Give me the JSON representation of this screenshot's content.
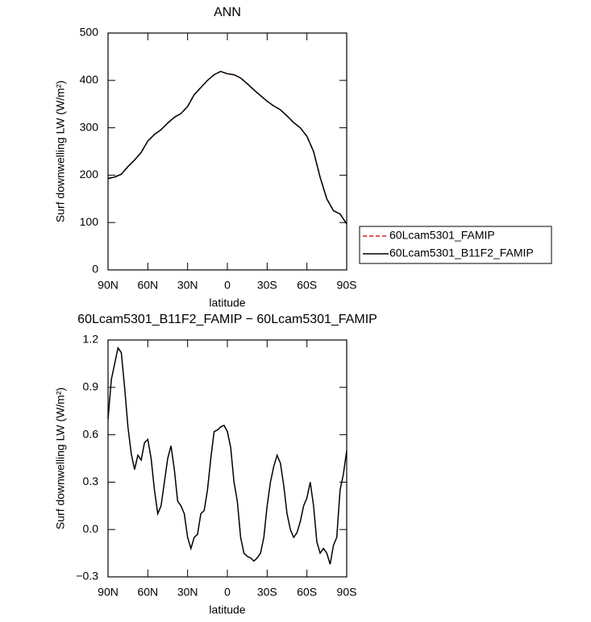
{
  "chart_data": [
    {
      "type": "line",
      "title": "ANN",
      "xlabel": "latitude",
      "ylabel": "Surf downwelling LW (W/m²)",
      "x": [
        90,
        85,
        80,
        75,
        70,
        65,
        60,
        55,
        50,
        45,
        40,
        35,
        30,
        25,
        20,
        15,
        10,
        5,
        0,
        -5,
        -10,
        -15,
        -20,
        -25,
        -30,
        -35,
        -40,
        -45,
        -50,
        -55,
        -60,
        -65,
        -70,
        -75,
        -80,
        -85,
        -90
      ],
      "series": [
        {
          "name": "60Lcam5301_FAMIP",
          "color": "#e41a1c",
          "dash": true,
          "values": [
            193,
            196,
            202,
            218,
            232,
            248,
            272,
            286,
            296,
            310,
            322,
            330,
            345,
            370,
            385,
            400,
            412,
            419,
            414,
            412,
            405,
            393,
            380,
            368,
            356,
            346,
            338,
            325,
            311,
            300,
            282,
            250,
            195,
            150,
            125,
            118,
            97
          ]
        },
        {
          "name": "60Lcam5301_B11F2_FAMIP",
          "color": "#000000",
          "dash": false,
          "values": [
            193,
            196,
            202,
            218,
            232,
            248,
            272,
            286,
            296,
            310,
            322,
            330,
            345,
            370,
            385,
            400,
            412,
            419,
            414,
            412,
            405,
            393,
            380,
            368,
            356,
            346,
            338,
            325,
            311,
            300,
            282,
            250,
            195,
            150,
            125,
            118,
            97
          ]
        }
      ],
      "xlim": [
        90,
        -90
      ],
      "xticks": [
        {
          "value": 90,
          "label": "90N"
        },
        {
          "value": 60,
          "label": "60N"
        },
        {
          "value": 30,
          "label": "30N"
        },
        0,
        {
          "value": -30,
          "label": "30S"
        },
        {
          "value": -60,
          "label": "60S"
        },
        {
          "value": -90,
          "label": "90S"
        }
      ],
      "ylim": [
        0,
        500
      ],
      "yticks": [
        0,
        100,
        200,
        300,
        400,
        500
      ],
      "legend": "outside-right"
    },
    {
      "type": "line",
      "title": "60Lcam5301_B11F2_FAMIP − 60Lcam5301_FAMIP",
      "xlabel": "latitude",
      "ylabel": "Surf downwelling LW (W/m²)",
      "x": [
        90,
        87.5,
        85,
        82.5,
        80,
        77.5,
        75,
        72.5,
        70,
        67.5,
        65,
        62.5,
        60,
        57.5,
        55,
        52.5,
        50,
        47.5,
        45,
        42.5,
        40,
        37.5,
        35,
        32.5,
        30,
        27.5,
        25,
        22.5,
        20,
        17.5,
        15,
        12.5,
        10,
        7.5,
        5,
        2.5,
        0,
        -2.5,
        -5,
        -7.5,
        -10,
        -12.5,
        -15,
        -17.5,
        -20,
        -22.5,
        -25,
        -27.5,
        -30,
        -32.5,
        -35,
        -37.5,
        -40,
        -42.5,
        -45,
        -47.5,
        -50,
        -52.5,
        -55,
        -57.5,
        -60,
        -62.5,
        -65,
        -67.5,
        -70,
        -72.5,
        -75,
        -77.5,
        -80,
        -82.5,
        -85,
        -87.5,
        -90
      ],
      "series": [
        {
          "color": "#000000",
          "dash": false,
          "values": [
            0.7,
            0.95,
            1.05,
            1.15,
            1.12,
            0.9,
            0.65,
            0.48,
            0.38,
            0.47,
            0.44,
            0.55,
            0.57,
            0.45,
            0.25,
            0.1,
            0.15,
            0.3,
            0.45,
            0.53,
            0.38,
            0.18,
            0.15,
            0.1,
            -0.05,
            -0.12,
            -0.05,
            -0.03,
            0.1,
            0.12,
            0.25,
            0.45,
            0.62,
            0.63,
            0.65,
            0.66,
            0.62,
            0.52,
            0.3,
            0.18,
            -0.05,
            -0.15,
            -0.17,
            -0.18,
            -0.2,
            -0.18,
            -0.15,
            -0.05,
            0.15,
            0.3,
            0.4,
            0.47,
            0.42,
            0.28,
            0.1,
            0.0,
            -0.05,
            -0.02,
            0.05,
            0.15,
            0.2,
            0.3,
            0.15,
            -0.08,
            -0.15,
            -0.12,
            -0.15,
            -0.22,
            -0.1,
            -0.05,
            0.25,
            0.35,
            0.5
          ]
        }
      ],
      "xlim": [
        90,
        -90
      ],
      "xticks": [
        {
          "value": 90,
          "label": "90N"
        },
        {
          "value": 60,
          "label": "60N"
        },
        {
          "value": 30,
          "label": "30N"
        },
        0,
        {
          "value": -30,
          "label": "30S"
        },
        {
          "value": -60,
          "label": "60S"
        },
        {
          "value": -90,
          "label": "90S"
        }
      ],
      "ylim": [
        -0.3,
        1.2
      ],
      "yticks": [
        {
          "value": -0.3,
          "label": "−0.3"
        },
        {
          "value": 0,
          "label": "0.0"
        },
        0.3,
        0.6,
        0.9,
        1.2
      ]
    }
  ]
}
